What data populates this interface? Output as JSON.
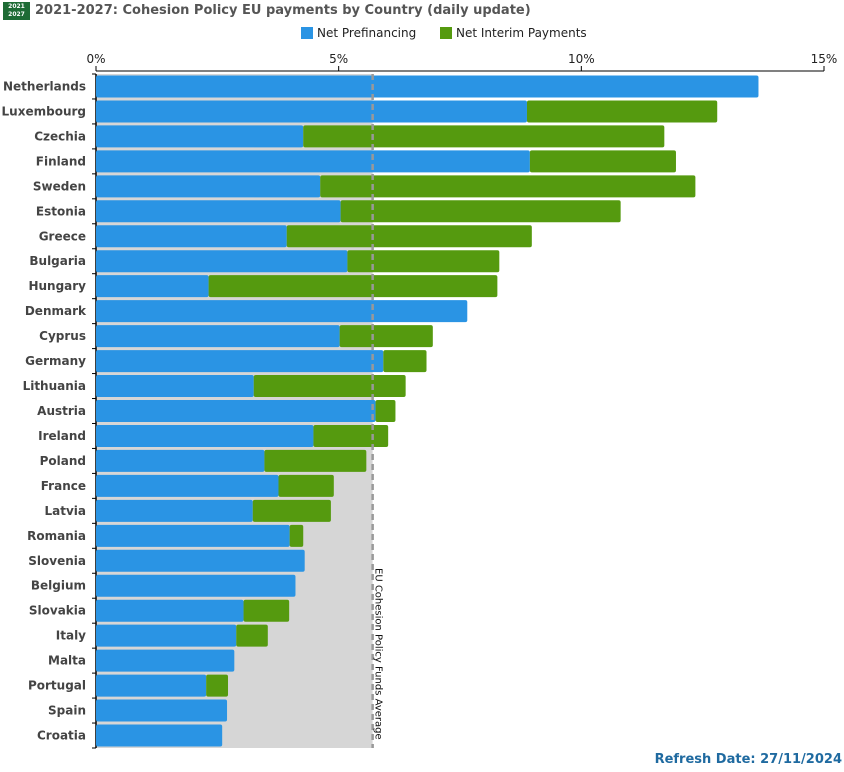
{
  "header": {
    "badge_line1": "2021",
    "badge_line2": "2027",
    "title": "2021-2027: Cohesion Policy EU payments by Country (daily update)"
  },
  "refresh_label": "Refresh Date: 27/11/2024",
  "colors": {
    "prefinancing": "#2a94e4",
    "interim": "#559a0f",
    "average_band": "#d6d6d6",
    "average_line": "#999999"
  },
  "chart_data": {
    "type": "bar",
    "orientation": "horizontal",
    "stacked": true,
    "title": "2021-2027: Cohesion Policy EU payments by Country (daily update)",
    "xlim": [
      0,
      15
    ],
    "x_ticks": [
      {
        "value": 0,
        "label": "0%"
      },
      {
        "value": 5,
        "label": "5%"
      },
      {
        "value": 10,
        "label": "10%"
      },
      {
        "value": 15,
        "label": "15%"
      }
    ],
    "legend_position": "top-center",
    "categories": [
      "Netherlands",
      "Luxembourg",
      "Czechia",
      "Finland",
      "Sweden",
      "Estonia",
      "Greece",
      "Bulgaria",
      "Hungary",
      "Denmark",
      "Cyprus",
      "Germany",
      "Lithuania",
      "Austria",
      "Ireland",
      "Poland",
      "France",
      "Latvia",
      "Romania",
      "Slovenia",
      "Belgium",
      "Slovakia",
      "Italy",
      "Malta",
      "Portugal",
      "Spain",
      "Croatia"
    ],
    "series": [
      {
        "name": "Net Prefinancing",
        "values": [
          13.65,
          8.88,
          4.27,
          8.94,
          4.62,
          5.04,
          3.93,
          5.18,
          2.32,
          7.65,
          5.02,
          5.92,
          3.25,
          5.76,
          4.48,
          3.47,
          3.76,
          3.23,
          3.99,
          4.3,
          4.11,
          3.04,
          2.89,
          2.85,
          2.27,
          2.7,
          2.6
        ]
      },
      {
        "name": "Net Interim Payments",
        "values": [
          0,
          3.92,
          7.44,
          3.01,
          7.73,
          5.77,
          5.05,
          3.13,
          5.95,
          0,
          1.92,
          0.89,
          3.13,
          0.41,
          1.54,
          2.1,
          1.14,
          1.61,
          0.28,
          0,
          0,
          0.94,
          0.65,
          0,
          0.45,
          0,
          0
        ]
      }
    ],
    "average": {
      "value": 5.7,
      "label": "EU Cohesion Policy Funds Average"
    }
  }
}
